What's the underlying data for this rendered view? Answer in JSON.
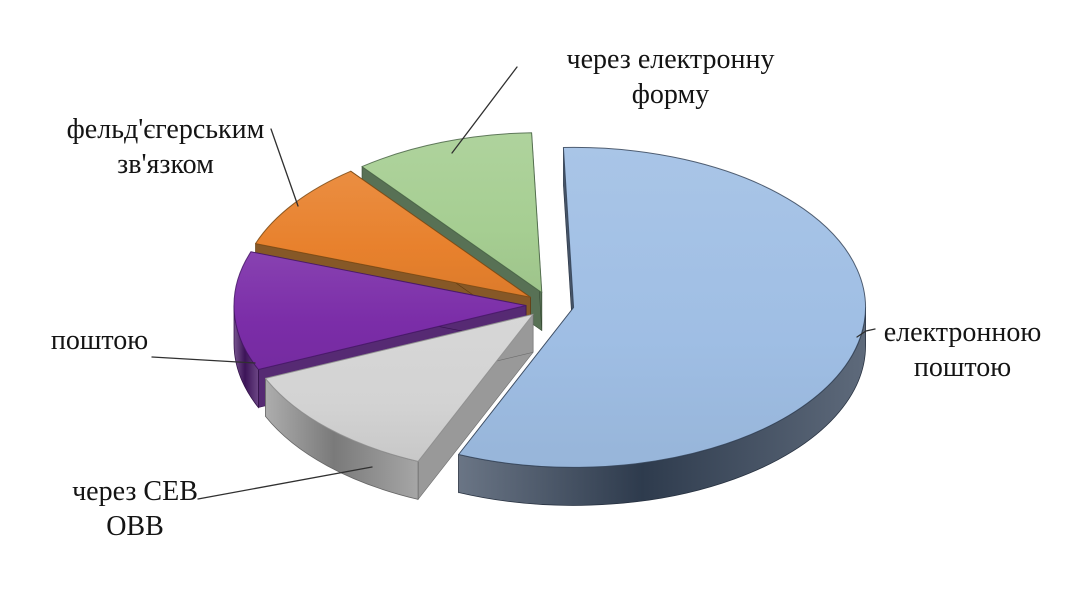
{
  "page": {
    "background": "#ffffff"
  },
  "chart_data": {
    "type": "pie",
    "style": "3d-exploded-pie",
    "title": "",
    "legend_position": "none",
    "data_labels": "category-name-callouts",
    "start_angle_deg": -2,
    "series": [
      {
        "key": "email",
        "label": "електронною поштою",
        "value_percent": 57,
        "top_color": "#9FBEE4",
        "side_color": "#36455A"
      },
      {
        "key": "sev",
        "label": "через СЕВ ОВВ",
        "value_percent": 12,
        "top_color": "#D3D3D3",
        "side_color": "#909090"
      },
      {
        "key": "mail",
        "label": "поштою",
        "value_percent": 12,
        "top_color": "#7B2DA8",
        "side_color": "#471867"
      },
      {
        "key": "courier",
        "label": "фельд'єгерським зв'язком",
        "value_percent": 9,
        "top_color": "#E8812D",
        "side_color": "#7B4A14"
      },
      {
        "key": "eform",
        "label": "через електронну форму",
        "value_percent": 10,
        "top_color": "#A6CE92",
        "side_color": "#4A6546"
      }
    ],
    "labels": [
      {
        "key": "email",
        "text": "електронною\nпоштою"
      },
      {
        "key": "sev",
        "text": "через СЕВ\nОВВ"
      },
      {
        "key": "mail",
        "text": "поштою"
      },
      {
        "key": "courier",
        "text": "фельд'єгерським\nзв'язком"
      },
      {
        "key": "eform",
        "text": "через електронну\nформу"
      }
    ],
    "leader_line_color": "#303030",
    "label_text_color": "#141414"
  }
}
